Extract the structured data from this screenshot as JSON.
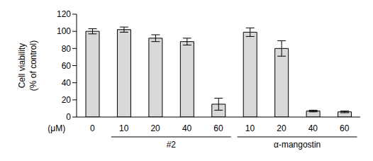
{
  "chart_data": {
    "type": "bar",
    "y_label": "Cell viability\n(% of control)",
    "x_label": "(μM)",
    "categories": [
      "0",
      "10",
      "20",
      "40",
      "60",
      "10",
      "20",
      "40",
      "60"
    ],
    "values": [
      100,
      102,
      92,
      88,
      15,
      99,
      80,
      7,
      6
    ],
    "errors": [
      3,
      3,
      4,
      4,
      7,
      5,
      9,
      1,
      1
    ],
    "groups": [
      {
        "label": "#2",
        "start": 1,
        "end": 4
      },
      {
        "label": "α-mangostin",
        "start": 5,
        "end": 8
      }
    ],
    "color": "#d9d9d9",
    "ylim": [
      0,
      120
    ],
    "yticks": [
      0,
      20,
      40,
      60,
      80,
      100,
      120
    ],
    "grid": false
  }
}
